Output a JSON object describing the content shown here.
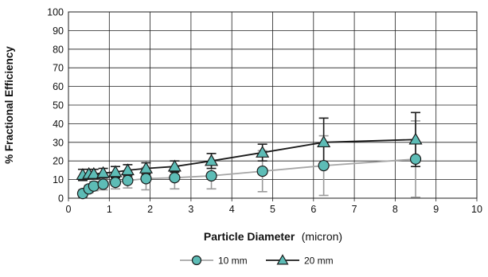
{
  "chart_data": {
    "type": "line",
    "xlabel": "Particle Diameter",
    "xlabel_unit": "(micron)",
    "ylabel": "% Fractional Efficiency",
    "xlim": [
      0,
      10
    ],
    "ylim": [
      0,
      100
    ],
    "x_ticks": [
      "0",
      "1",
      "2",
      "3",
      "4",
      "5",
      "6",
      "7",
      "8",
      "9",
      "10"
    ],
    "y_ticks": [
      "0",
      "10",
      "20",
      "30",
      "40",
      "50",
      "60",
      "70",
      "80",
      "90",
      "100"
    ],
    "grid": true,
    "legend_position": "bottom",
    "series": [
      {
        "name": "10 mm",
        "marker": "circle",
        "line_color": "#a6a6a6",
        "marker_fill": "#5dbcb6",
        "marker_stroke": "#1a1a1a",
        "points": [
          {
            "x": 0.35,
            "y": 2.5,
            "err_low": 2.0,
            "err_high": 2.0
          },
          {
            "x": 0.5,
            "y": 5.0,
            "err_low": 2.0,
            "err_high": 2.0
          },
          {
            "x": 0.62,
            "y": 6.5,
            "err_low": 2.5,
            "err_high": 2.5
          },
          {
            "x": 0.85,
            "y": 7.5,
            "err_low": 3.0,
            "err_high": 3.0
          },
          {
            "x": 1.15,
            "y": 8.5,
            "err_low": 3.5,
            "err_high": 3.5
          },
          {
            "x": 1.45,
            "y": 9.5,
            "err_low": 4.0,
            "err_high": 4.0
          },
          {
            "x": 1.9,
            "y": 10.5,
            "err_low": 6.0,
            "err_high": 6.0
          },
          {
            "x": 2.6,
            "y": 11.0,
            "err_low": 6.0,
            "err_high": 6.0
          },
          {
            "x": 3.5,
            "y": 12.0,
            "err_low": 7.0,
            "err_high": 7.0
          },
          {
            "x": 4.75,
            "y": 14.5,
            "err_low": 11.0,
            "err_high": 11.0
          },
          {
            "x": 6.25,
            "y": 17.5,
            "err_low": 16.0,
            "err_high": 16.0
          },
          {
            "x": 8.5,
            "y": 21.0,
            "err_low": 20.5,
            "err_high": 20.5
          }
        ]
      },
      {
        "name": "20 mm",
        "marker": "triangle",
        "line_color": "#1a1a1a",
        "marker_fill": "#5dbcb6",
        "marker_stroke": "#1a1a1a",
        "points": [
          {
            "x": 0.35,
            "y": 12.5,
            "err_low": 3.0,
            "err_high": 3.0
          },
          {
            "x": 0.5,
            "y": 13.0,
            "err_low": 2.5,
            "err_high": 2.5
          },
          {
            "x": 0.62,
            "y": 13.0,
            "err_low": 2.5,
            "err_high": 2.5
          },
          {
            "x": 0.85,
            "y": 13.5,
            "err_low": 2.5,
            "err_high": 2.5
          },
          {
            "x": 1.15,
            "y": 14.0,
            "err_low": 3.0,
            "err_high": 3.0
          },
          {
            "x": 1.45,
            "y": 15.0,
            "err_low": 3.0,
            "err_high": 3.0
          },
          {
            "x": 1.9,
            "y": 16.0,
            "err_low": 3.0,
            "err_high": 3.0
          },
          {
            "x": 2.6,
            "y": 17.0,
            "err_low": 3.0,
            "err_high": 3.0
          },
          {
            "x": 3.5,
            "y": 20.0,
            "err_low": 4.0,
            "err_high": 4.0
          },
          {
            "x": 4.75,
            "y": 24.5,
            "err_low": 4.5,
            "err_high": 4.5
          },
          {
            "x": 6.25,
            "y": 30.0,
            "err_low": 13.0,
            "err_high": 13.0
          },
          {
            "x": 8.5,
            "y": 31.5,
            "err_low": 14.5,
            "err_high": 14.5
          }
        ]
      }
    ]
  }
}
